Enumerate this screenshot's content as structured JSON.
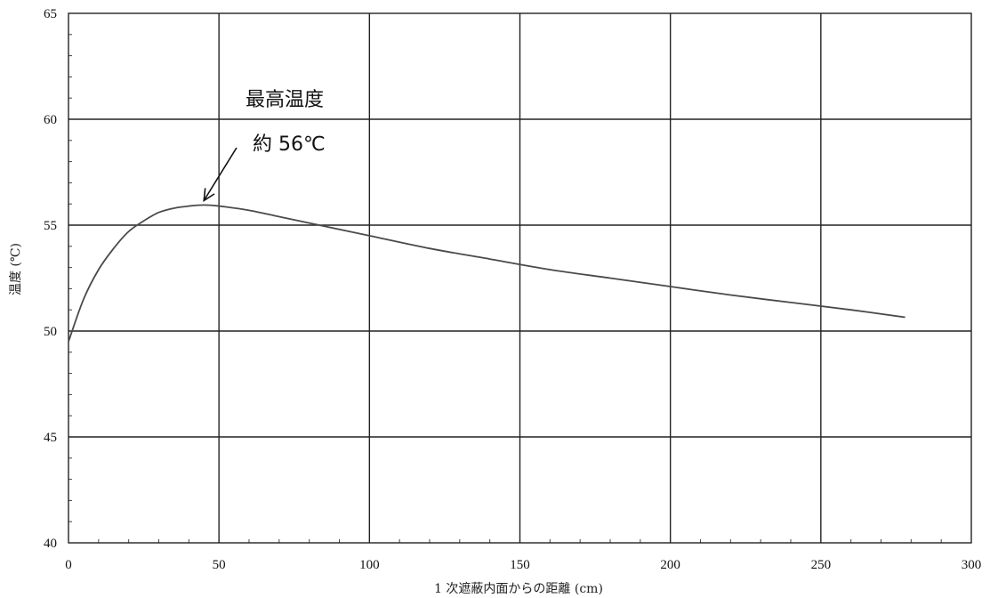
{
  "chart_data": {
    "type": "line",
    "title": "",
    "xlabel": "1 次遮蔽内面からの距離 (cm)",
    "ylabel": "温度 (℃)",
    "xlim": [
      0,
      300
    ],
    "ylim": [
      40,
      65
    ],
    "x_ticks": [
      "0",
      "50",
      "100",
      "150",
      "200",
      "250",
      "300"
    ],
    "y_ticks": [
      "40",
      "45",
      "50",
      "55",
      "60",
      "65"
    ],
    "grid": true,
    "series": [
      {
        "name": "",
        "x": [
          0,
          5,
          10,
          15,
          20,
          25,
          30,
          35,
          40,
          45,
          50,
          60,
          70,
          80,
          90,
          100,
          120,
          140,
          160,
          180,
          200,
          220,
          240,
          260,
          278
        ],
        "y": [
          49.5,
          51.5,
          52.9,
          53.9,
          54.7,
          55.2,
          55.6,
          55.8,
          55.9,
          55.95,
          55.9,
          55.7,
          55.4,
          55.1,
          54.8,
          54.5,
          53.9,
          53.4,
          52.9,
          52.5,
          52.1,
          51.7,
          51.35,
          51.0,
          50.65
        ]
      }
    ],
    "annotations": [
      {
        "label_line1": "最高温度",
        "label_line2": "約 56℃",
        "target_x": 45,
        "target_y": 55.95
      }
    ]
  }
}
